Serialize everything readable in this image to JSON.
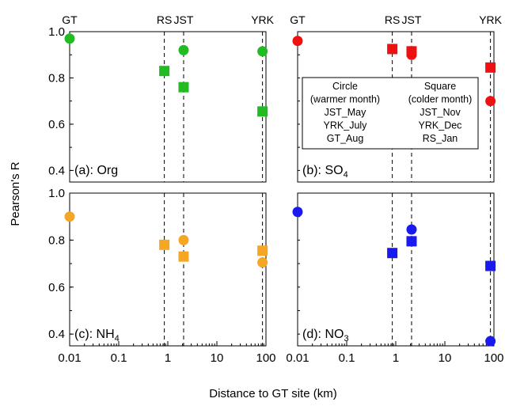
{
  "figure": {
    "ylabel": "Pearson's R",
    "xlabel": "Distance to GT site (km)",
    "site_labels": [
      {
        "text": "GT",
        "x": 0.01,
        "line": false
      },
      {
        "text": "RS",
        "x": 0.85,
        "line": true
      },
      {
        "text": "JST",
        "x": 2.1,
        "line": true
      },
      {
        "text": "YRK",
        "x": 85,
        "line": true
      }
    ],
    "legend": {
      "col1": [
        "Circle",
        "(warmer month)",
        "JST_May",
        "YRK_July",
        "GT_Aug"
      ],
      "col2": [
        "Square",
        "(colder month)",
        "JST_Nov",
        "YRK_Dec",
        "RS_Jan"
      ]
    }
  },
  "chart_data": [
    {
      "type": "scatter",
      "panel": "top-left",
      "label": "(a): Org",
      "species": "Org",
      "color": "#22bb22",
      "xscale": "log",
      "xlim": [
        0.01,
        100
      ],
      "ylim": [
        0.35,
        1.0
      ],
      "yticks": [
        0.4,
        0.6,
        0.8,
        1.0
      ],
      "xticks": [],
      "series": [
        {
          "name": "Circle (warmer month)",
          "marker": "circle",
          "x": [
            0.01,
            2.1,
            85
          ],
          "y": [
            0.97,
            0.92,
            0.915
          ]
        },
        {
          "name": "Square (colder month)",
          "marker": "square",
          "x": [
            0.85,
            2.1,
            85
          ],
          "y": [
            0.83,
            0.76,
            0.655
          ]
        }
      ]
    },
    {
      "type": "scatter",
      "panel": "top-right",
      "label": "(b): SO",
      "subscript": "4",
      "species": "SO4",
      "color": "#ee1111",
      "xscale": "log",
      "xlim": [
        0.01,
        100
      ],
      "ylim": [
        0.35,
        1.0
      ],
      "yticks": [],
      "xticks": [],
      "series": [
        {
          "name": "Circle (warmer month)",
          "marker": "circle",
          "x": [
            0.01,
            2.1,
            85
          ],
          "y": [
            0.96,
            0.9,
            0.7
          ]
        },
        {
          "name": "Square (colder month)",
          "marker": "square",
          "x": [
            0.85,
            2.1,
            85
          ],
          "y": [
            0.925,
            0.915,
            0.845
          ]
        }
      ]
    },
    {
      "type": "scatter",
      "panel": "bottom-left",
      "label": "(c): NH",
      "subscript": "4",
      "species": "NH4",
      "color": "#f5a623",
      "xscale": "log",
      "xlim": [
        0.01,
        100
      ],
      "ylim": [
        0.35,
        1.0
      ],
      "yticks": [
        0.4,
        0.6,
        0.8,
        1.0
      ],
      "xticks": [
        "0.01",
        "0.1",
        "1",
        "10",
        "100"
      ],
      "series": [
        {
          "name": "Circle (warmer month)",
          "marker": "circle",
          "x": [
            0.01,
            2.1,
            85
          ],
          "y": [
            0.9,
            0.8,
            0.705
          ]
        },
        {
          "name": "Square (colder month)",
          "marker": "square",
          "x": [
            0.85,
            2.1,
            85
          ],
          "y": [
            0.78,
            0.73,
            0.755
          ]
        }
      ]
    },
    {
      "type": "scatter",
      "panel": "bottom-right",
      "label": "(d): NO",
      "subscript": "3",
      "species": "NO3",
      "color": "#1a1aee",
      "xscale": "log",
      "xlim": [
        0.01,
        100
      ],
      "ylim": [
        0.35,
        1.0
      ],
      "yticks": [],
      "xticks": [
        "0.01",
        "0.1",
        "1",
        "10",
        "100"
      ],
      "series": [
        {
          "name": "Circle (warmer month)",
          "marker": "circle",
          "x": [
            0.01,
            2.1,
            85
          ],
          "y": [
            0.92,
            0.845,
            0.37
          ]
        },
        {
          "name": "Square (colder month)",
          "marker": "square",
          "x": [
            0.85,
            2.1,
            85
          ],
          "y": [
            0.745,
            0.795,
            0.69
          ]
        }
      ]
    }
  ]
}
